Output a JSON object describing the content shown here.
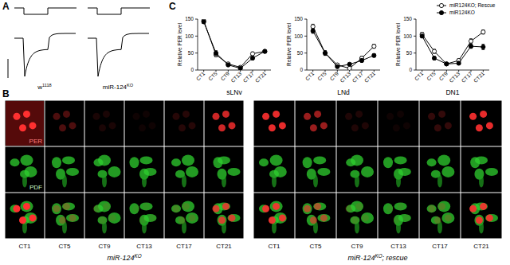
{
  "panel_labels": [
    "A",
    "B",
    "C"
  ],
  "panels": {
    "A": {
      "traces": [
        {
          "label": {
            "text": "w",
            "sup": "1118"
          }
        },
        {
          "label": {
            "text": "miR-124",
            "sup": "KO"
          }
        }
      ]
    },
    "B": {
      "row_labels": [
        "PER",
        "PDF"
      ],
      "groups": [
        {
          "label": {
            "text": "miR-124",
            "sup": "KO"
          },
          "columns": [
            "CT1",
            "CT5",
            "CT9",
            "CT13",
            "CT17",
            "CT21"
          ]
        },
        {
          "label": {
            "text": "miR-124",
            "sup": "KO",
            "after": "; rescue"
          },
          "columns": [
            "CT1",
            "CT5",
            "CT9",
            "CT13",
            "CT17",
            "CT21"
          ]
        }
      ]
    }
  },
  "chart_data": [
    {
      "type": "line",
      "title": "sLNv",
      "y_label": "Relative PER level",
      "categories": [
        "CT1",
        "CT5",
        "CT9",
        "CT13",
        "CT17",
        "CT21"
      ],
      "ylim": [
        0,
        150
      ],
      "yticks": [
        0,
        50,
        100,
        150
      ],
      "series": [
        {
          "color": "#000000",
          "marker": "circle-open",
          "values": [
            145,
            45,
            18,
            8,
            48,
            55
          ],
          "errors": [
            6,
            6,
            3,
            3,
            5,
            4
          ]
        },
        {
          "color": "#000000",
          "marker": "circle",
          "values": [
            142,
            50,
            15,
            5,
            35,
            55
          ],
          "errors": [
            5,
            7,
            3,
            2,
            5,
            4
          ]
        }
      ]
    },
    {
      "type": "line",
      "title": "LNd",
      "y_label": "Relative PER level",
      "categories": [
        "CT1",
        "CT5",
        "CT9",
        "CT13",
        "CT17",
        "CT21"
      ],
      "ylim": [
        0,
        150
      ],
      "yticks": [
        0,
        50,
        100,
        150
      ],
      "series": [
        {
          "color": "#000000",
          "marker": "circle-open",
          "values": [
            128,
            50,
            15,
            5,
            35,
            70
          ],
          "errors": [
            7,
            7,
            3,
            2,
            5,
            6
          ]
        },
        {
          "color": "#000000",
          "marker": "circle",
          "values": [
            115,
            50,
            10,
            17,
            28,
            43
          ],
          "errors": [
            7,
            6,
            3,
            4,
            5,
            5
          ]
        }
      ]
    },
    {
      "type": "line",
      "title": "DN1",
      "y_label": "Relative PER level",
      "categories": [
        "CT1",
        "CT5",
        "CT9",
        "CT13",
        "CT17",
        "CT21"
      ],
      "ylim": [
        0,
        150
      ],
      "yticks": [
        0,
        50,
        100,
        150
      ],
      "legend": "top-right",
      "series": [
        {
          "name": "miR124KO; Rescue",
          "color": "#000000",
          "marker": "circle-open",
          "values": [
            105,
            55,
            18,
            28,
            85,
            112
          ],
          "errors": [
            6,
            6,
            3,
            5,
            7,
            6
          ]
        },
        {
          "name": "miR124KO",
          "color": "#000000",
          "marker": "circle",
          "values": [
            100,
            35,
            18,
            20,
            70,
            68
          ],
          "errors": [
            5,
            5,
            3,
            4,
            6,
            8
          ]
        }
      ]
    }
  ]
}
